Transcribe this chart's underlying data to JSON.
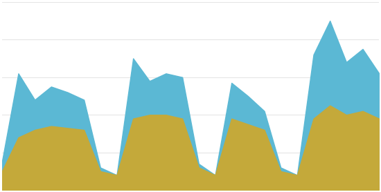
{
  "blue_values": [
    15,
    62,
    48,
    55,
    52,
    48,
    12,
    8,
    70,
    58,
    62,
    60,
    14,
    8,
    57,
    50,
    42,
    12,
    8,
    72,
    90,
    68,
    75,
    62
  ],
  "yellow_values": [
    10,
    28,
    32,
    34,
    33,
    32,
    10,
    8,
    38,
    40,
    40,
    38,
    12,
    8,
    38,
    35,
    32,
    10,
    8,
    38,
    45,
    40,
    42,
    38
  ],
  "blue_color": "#5bb8d4",
  "yellow_color": "#c4a93a",
  "background_color": "#ffffff",
  "grid_color": "#e5e5e5",
  "ylim": [
    0,
    100
  ],
  "n_gridlines": 5
}
